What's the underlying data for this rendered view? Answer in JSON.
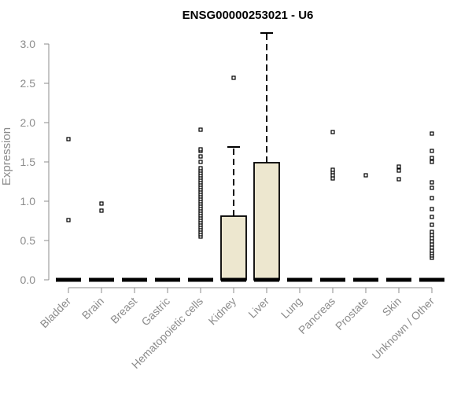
{
  "chart_data": {
    "type": "boxplot",
    "title": "ENSG00000253021 - U6",
    "xlabel": "",
    "ylabel": "Expression",
    "ylim": [
      0,
      3.0
    ],
    "yticks": [
      "0.0",
      "0.5",
      "1.0",
      "1.5",
      "2.0",
      "2.5",
      "3.0"
    ],
    "grid": false,
    "box_fill": "#ede7cf",
    "box_stroke": "#000000",
    "categories": [
      "Bladder",
      "Brain",
      "Breast",
      "Gastric",
      "Hematopoietic cells",
      "Kidney",
      "Liver",
      "Lung",
      "Pancreas",
      "Prostate",
      "Skin",
      "Unknown / Other"
    ],
    "boxes": [
      {
        "q1": 0,
        "median": 0,
        "q3": 0,
        "whisker_low": 0,
        "whisker_high": 0
      },
      {
        "q1": 0,
        "median": 0,
        "q3": 0,
        "whisker_low": 0,
        "whisker_high": 0
      },
      {
        "q1": 0,
        "median": 0,
        "q3": 0,
        "whisker_low": 0,
        "whisker_high": 0
      },
      {
        "q1": 0,
        "median": 0,
        "q3": 0,
        "whisker_low": 0,
        "whisker_high": 0
      },
      {
        "q1": 0,
        "median": 0,
        "q3": 0,
        "whisker_low": 0,
        "whisker_high": 0
      },
      {
        "q1": 0,
        "median": 0,
        "q3": 0.81,
        "whisker_low": 0,
        "whisker_high": 1.69
      },
      {
        "q1": 0,
        "median": 0,
        "q3": 1.49,
        "whisker_low": 0,
        "whisker_high": 3.14
      },
      {
        "q1": 0,
        "median": 0,
        "q3": 0,
        "whisker_low": 0,
        "whisker_high": 0
      },
      {
        "q1": 0,
        "median": 0,
        "q3": 0,
        "whisker_low": 0,
        "whisker_high": 0
      },
      {
        "q1": 0,
        "median": 0,
        "q3": 0,
        "whisker_low": 0,
        "whisker_high": 0
      },
      {
        "q1": 0,
        "median": 0,
        "q3": 0,
        "whisker_low": 0,
        "whisker_high": 0
      },
      {
        "q1": 0,
        "median": 0,
        "q3": 0,
        "whisker_low": 0,
        "whisker_high": 0
      }
    ],
    "outliers": [
      [
        0.76,
        1.79
      ],
      [
        0.88,
        0.97
      ],
      [],
      [],
      [
        0.55,
        0.58,
        0.61,
        0.64,
        0.67,
        0.7,
        0.73,
        0.76,
        0.79,
        0.82,
        0.85,
        0.88,
        0.91,
        0.94,
        0.97,
        1.0,
        1.03,
        1.06,
        1.09,
        1.12,
        1.15,
        1.18,
        1.21,
        1.24,
        1.27,
        1.3,
        1.33,
        1.36,
        1.39,
        1.42,
        1.5,
        1.57,
        1.64,
        1.66,
        1.91
      ],
      [
        2.57
      ],
      [],
      [],
      [
        1.29,
        1.33,
        1.37,
        1.4,
        1.88
      ],
      [
        1.33
      ],
      [
        1.28,
        1.39,
        1.44
      ],
      [
        0.28,
        0.31,
        0.34,
        0.37,
        0.41,
        0.45,
        0.49,
        0.53,
        0.57,
        0.61,
        0.7,
        0.8,
        0.9,
        1.04,
        1.17,
        1.24,
        1.5,
        1.55,
        1.64,
        1.86
      ]
    ]
  }
}
